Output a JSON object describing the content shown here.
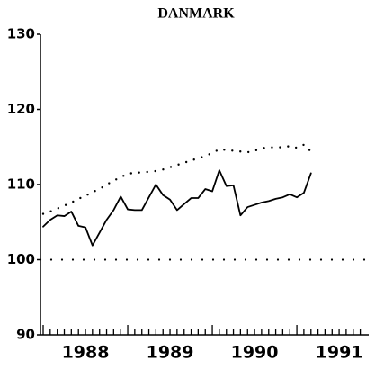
{
  "chart_data": {
    "type": "line",
    "title": "DANMARK",
    "x": [
      1988,
      1988.083,
      1988.167,
      1988.25,
      1988.333,
      1988.417,
      1988.5,
      1988.583,
      1988.667,
      1988.75,
      1988.833,
      1988.917,
      1989,
      1989.083,
      1989.167,
      1989.25,
      1989.333,
      1989.417,
      1989.5,
      1989.583,
      1989.667,
      1989.75,
      1989.833,
      1989.917,
      1990,
      1990.083,
      1990.167,
      1990.25,
      1990.333,
      1990.417,
      1990.5,
      1990.583,
      1990.667,
      1990.75,
      1990.833,
      1990.917,
      1991,
      1991.083,
      1991.167
    ],
    "series": [
      {
        "style": "solid",
        "color": "#000000",
        "values": [
          104.4,
          105.3,
          105.9,
          105.8,
          106.4,
          104.5,
          104.3,
          101.9,
          103.6,
          105.3,
          106.6,
          108.4,
          106.7,
          106.6,
          106.6,
          108.3,
          110,
          108.6,
          108,
          106.6,
          107.4,
          108.2,
          108.2,
          109.4,
          109.1,
          111.9,
          109.8,
          109.9,
          105.9,
          107,
          107.3,
          107.6,
          107.8,
          108.1,
          108.3,
          108.7,
          108.3,
          108.9,
          111.5
        ]
      },
      {
        "style": "dotted",
        "color": "#000000",
        "values": [
          106.1,
          106.4,
          106.8,
          107.2,
          107.6,
          108.1,
          108.5,
          109,
          109.4,
          110,
          110.5,
          111,
          111.4,
          111.6,
          111.6,
          111.7,
          111.8,
          112,
          112.3,
          112.6,
          112.9,
          113.2,
          113.5,
          113.8,
          114.2,
          114.7,
          114.6,
          114.5,
          114.4,
          114.3,
          114.5,
          114.8,
          115,
          114.9,
          115,
          115.1,
          114.9,
          115.3,
          114.4
        ]
      }
    ],
    "hline": 100,
    "xlim": [
      1987.968,
      1991.85
    ],
    "xticks": [
      {
        "value": 1988.5,
        "label": "1988"
      },
      {
        "value": 1989.5,
        "label": "1989"
      },
      {
        "value": 1990.5,
        "label": "1990"
      },
      {
        "value": 1991.5,
        "label": "1991"
      }
    ],
    "xminor_ticks": [
      1988,
      1988.083,
      1988.167,
      1988.25,
      1988.333,
      1988.417,
      1988.5,
      1988.583,
      1988.667,
      1988.75,
      1988.833,
      1988.917,
      1989,
      1989.083,
      1989.167,
      1989.25,
      1989.333,
      1989.417,
      1989.5,
      1989.583,
      1989.667,
      1989.75,
      1989.833,
      1989.917,
      1990,
      1990.083,
      1990.167,
      1990.25,
      1990.333,
      1990.417,
      1990.5,
      1990.583,
      1990.667,
      1990.75,
      1990.833,
      1990.917,
      1991,
      1991.083,
      1991.167,
      1991.25,
      1991.333,
      1991.417,
      1991.5,
      1991.583,
      1991.667,
      1991.75
    ],
    "ylim": [
      90,
      130
    ],
    "yticks": [
      90,
      100,
      110,
      120,
      130
    ],
    "grid": false
  }
}
